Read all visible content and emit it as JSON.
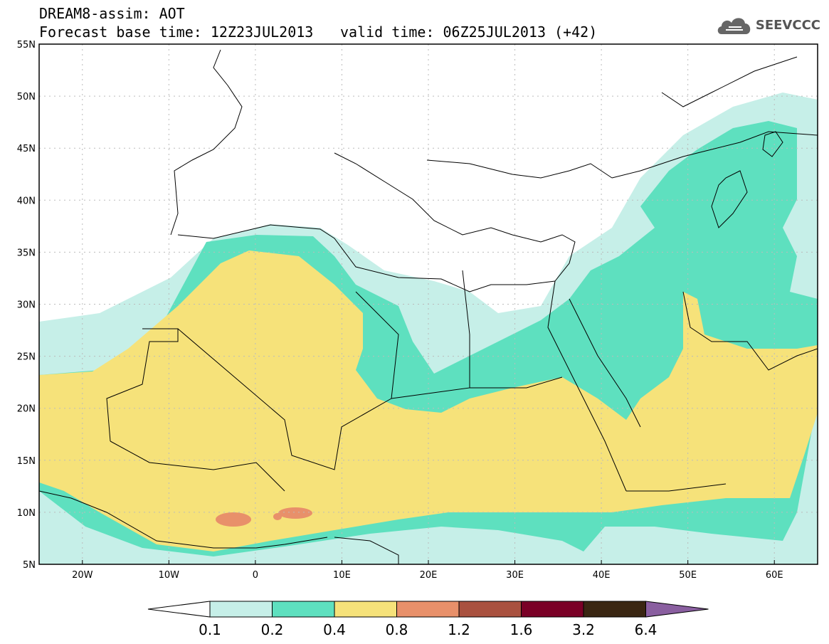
{
  "header": {
    "title_line1": "DREAM8-assim: AOT",
    "title_line2_left": "Forecast base time: 12Z23JUL2013",
    "title_line2_right": "valid time: 06Z25JUL2013 (+42)",
    "logo_text": "SEEVCCC",
    "logo_icon": "cloud-icon"
  },
  "map": {
    "lat_ticks": [
      "55N",
      "50N",
      "45N",
      "40N",
      "35N",
      "30N",
      "25N",
      "20N",
      "15N",
      "10N",
      "5N"
    ],
    "lon_ticks": [
      "20W",
      "10W",
      "0",
      "10E",
      "20E",
      "30E",
      "40E",
      "50E",
      "60E"
    ],
    "lon_range": [
      -25,
      65
    ],
    "lat_range": [
      5,
      55
    ]
  },
  "colorbar": {
    "labels": [
      "0.1",
      "0.2",
      "0.4",
      "0.8",
      "1.2",
      "1.6",
      "3.2",
      "6.4"
    ],
    "colors": [
      "#ffffff",
      "#c6efe8",
      "#5ee0bf",
      "#f6e27a",
      "#e8906a",
      "#a9513f",
      "#7a0026",
      "#3a2612",
      "#8a5fa0"
    ]
  }
}
